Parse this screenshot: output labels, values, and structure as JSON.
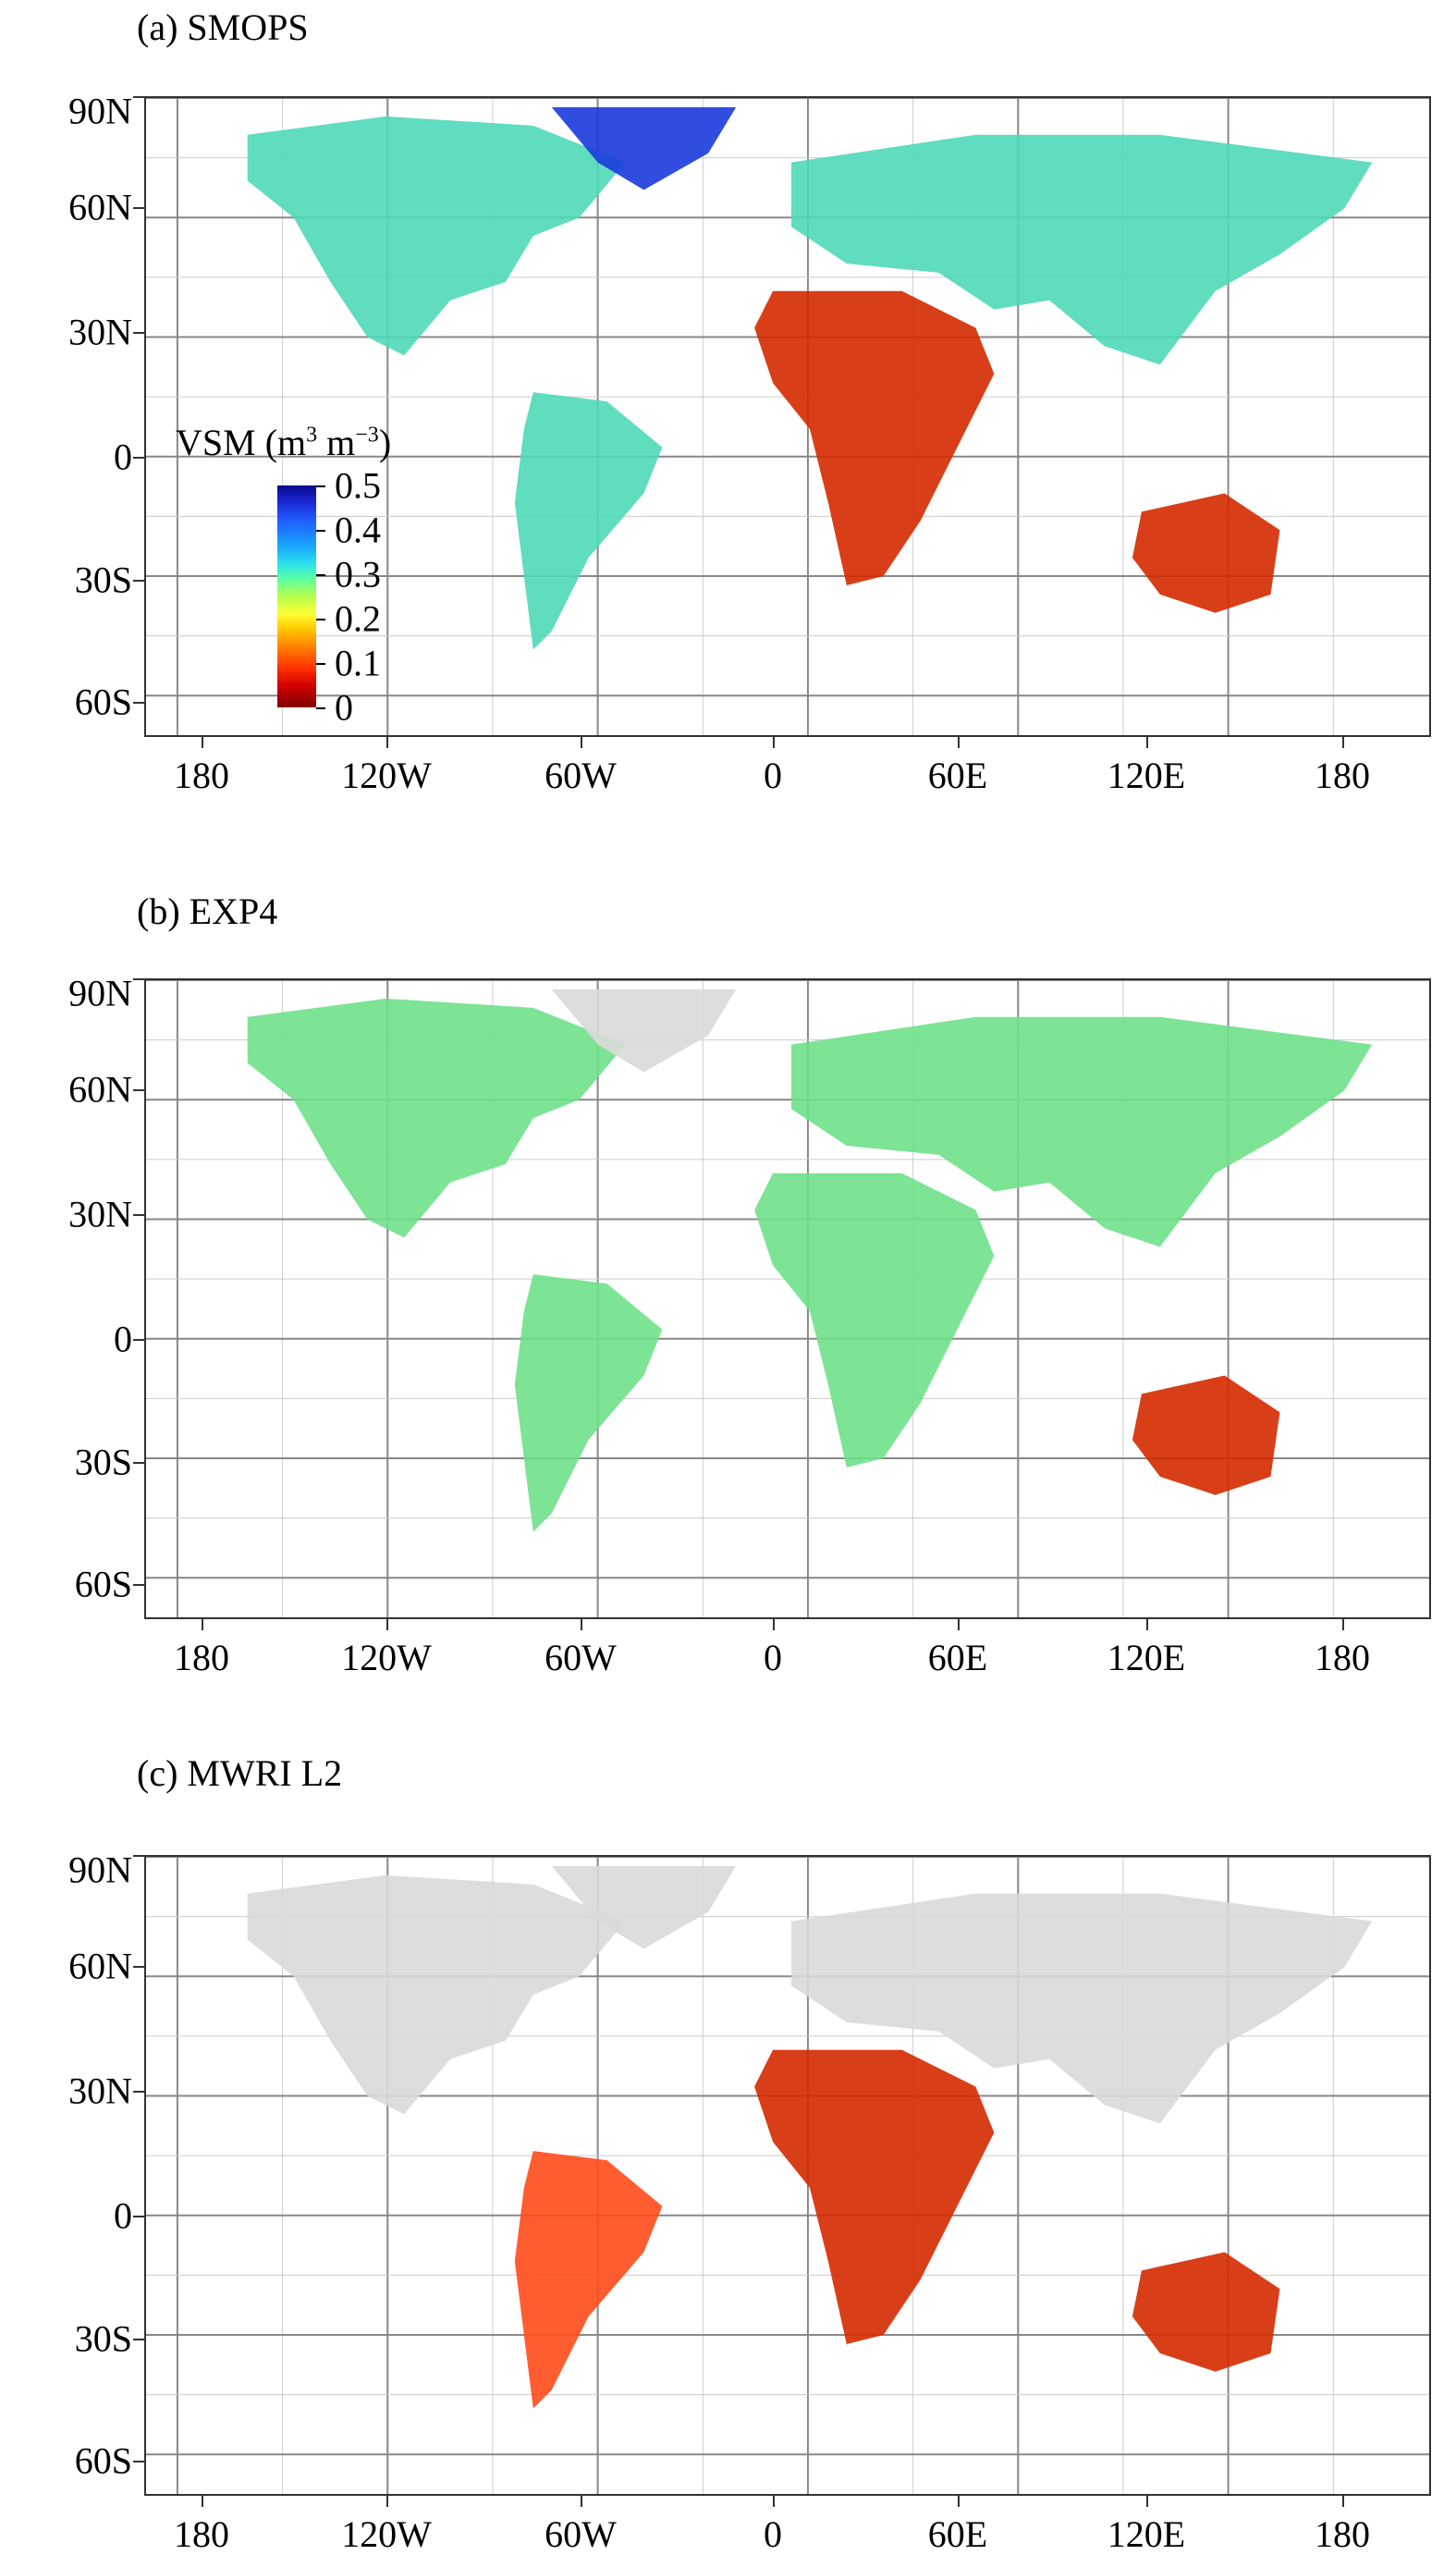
{
  "panels": [
    {
      "id": "a",
      "title": "(a) SMOPS",
      "color": "#4fd8b8"
    },
    {
      "id": "b",
      "title": "(b) EXP4",
      "color": "#6fe08a"
    },
    {
      "id": "c",
      "title": "(c) MWRI L2",
      "color": "#ff4a1a"
    }
  ],
  "lat_labels": [
    "90N",
    "60N",
    "30N",
    "0",
    "30S",
    "60S"
  ],
  "lon_labels": [
    "180",
    "120W",
    "60W",
    "0",
    "60E",
    "120E",
    "180"
  ],
  "legend": {
    "title": "VSM (m",
    "exp1": "3",
    "mid": " m",
    "exp2": "−3",
    "close": ")",
    "ticks": [
      "0.5",
      "0.4",
      "0.3",
      "0.2",
      "0.1",
      "0"
    ]
  },
  "colors": {
    "land_nodata": "#d9d9d9",
    "dry": "#d42a00",
    "wet": "#1a3adb"
  }
}
